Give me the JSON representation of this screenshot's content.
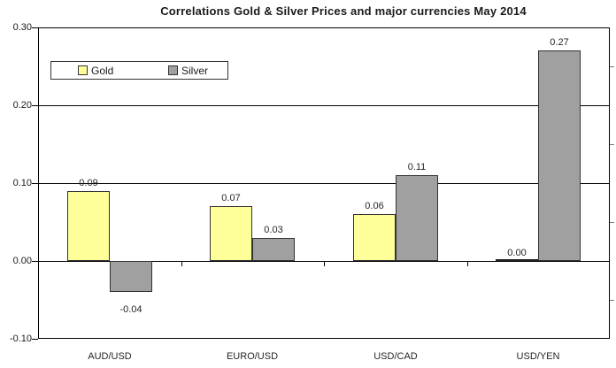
{
  "title": "Correlations Gold & Silver Prices and major currencies May 2014",
  "legend": {
    "position": "top-left-inside",
    "items": [
      {
        "label": "Gold",
        "swatch_color": "#FFFF99"
      },
      {
        "label": "Silver",
        "swatch_color": "#A0A0A0"
      }
    ]
  },
  "chart_data": {
    "type": "bar",
    "categories": [
      "AUD/USD",
      "EURO/USD",
      "USD/CAD",
      "USD/YEN"
    ],
    "series": [
      {
        "name": "Gold",
        "color": "#FFFF99",
        "values": [
          0.09,
          0.07,
          0.06,
          0.0
        ]
      },
      {
        "name": "Silver",
        "color": "#A0A0A0",
        "values": [
          -0.04,
          0.03,
          0.11,
          0.27
        ]
      }
    ],
    "data_labels": [
      [
        "0.09",
        "0.07",
        "0.06",
        "0.00"
      ],
      [
        "-0.04",
        "0.03",
        "0.11",
        "0.27"
      ]
    ],
    "title": "Correlations Gold & Silver Prices and major currencies May 2014",
    "xlabel": "",
    "ylabel": "",
    "ylim": [
      -0.1,
      0.3
    ],
    "ytick_interval": 0.1,
    "ytick_labels": [
      "0.30",
      "0.20",
      "0.10",
      "0.00",
      "-0.10"
    ],
    "ytick_values": [
      0.3,
      0.2,
      0.1,
      0.0,
      -0.1
    ],
    "minor_tick_values_right": [
      0.25,
      0.15,
      0.05,
      -0.05
    ],
    "grid": "horizontal-major",
    "legend_position": "top-left-inside"
  },
  "colors": {
    "background": "#ffffff",
    "gold_fill": "#FFFF99",
    "silver_fill": "#A0A0A0",
    "bar_border": "#333333",
    "axis_line": "#000000",
    "gridline": "#000000",
    "minor_tick": "#7a7a7a",
    "text": "#262626"
  }
}
